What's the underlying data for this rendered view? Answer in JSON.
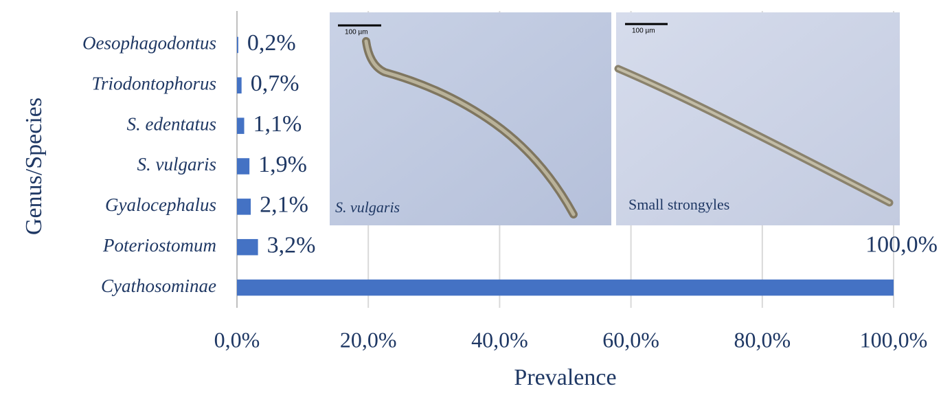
{
  "chart_data": {
    "type": "bar",
    "orientation": "horizontal",
    "x_label": "Prevalence",
    "y_label": "Genus/Species",
    "categories": [
      "Oesophagodontus",
      "Triodontophorus",
      "S. edentatus",
      "S. vulgaris",
      "Gyalocephalus",
      "Poteriostomum",
      "Cyathosominae"
    ],
    "values": [
      0.2,
      0.7,
      1.1,
      1.9,
      2.1,
      3.2,
      100
    ],
    "value_labels": [
      "0,2%",
      "0,7%",
      "1,1%",
      "1,9%",
      "2,1%",
      "3,2%",
      "100,0%"
    ],
    "color": "#4472c4",
    "xlim": [
      0,
      100
    ],
    "xticks": [
      {
        "value": 0,
        "label": "0,0%"
      },
      {
        "value": 20,
        "label": "20,0%"
      },
      {
        "value": 40,
        "label": "40,0%"
      },
      {
        "value": 60,
        "label": "60,0%"
      },
      {
        "value": 80,
        "label": "80,0%"
      },
      {
        "value": 100,
        "label": "100,0%"
      }
    ],
    "grid": true,
    "insets": [
      {
        "caption": "S. vulgaris",
        "scale_label": "100 µm"
      },
      {
        "caption": "Small strongyles",
        "scale_label": "100 µm"
      }
    ]
  }
}
